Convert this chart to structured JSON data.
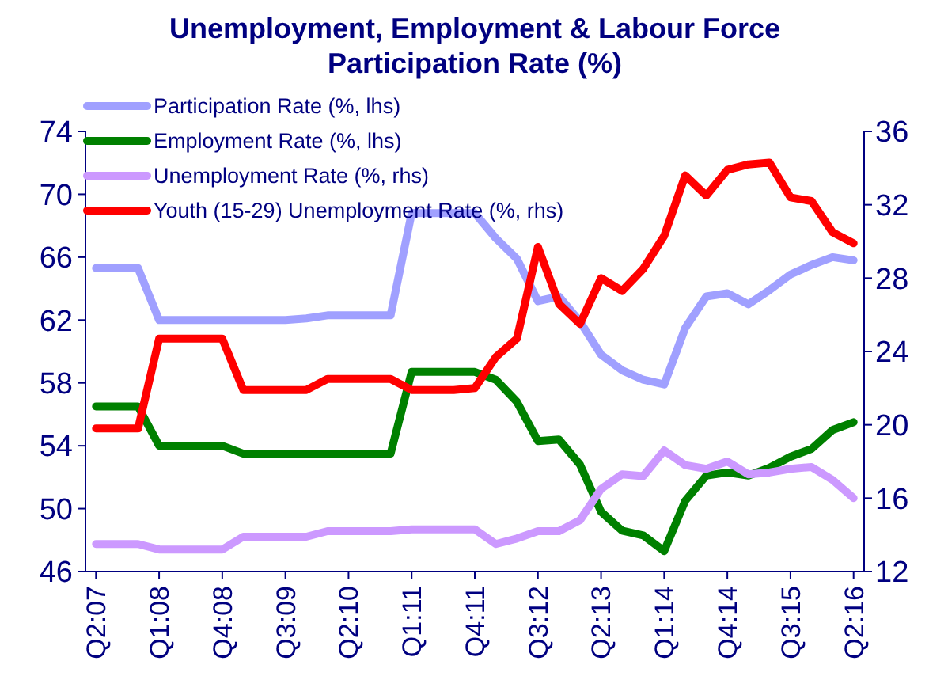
{
  "chart_data": {
    "type": "line",
    "title": "Unemployment, Employment & Labour Force\nParticipation Rate (%)",
    "categories": [
      "Q2:07",
      null,
      null,
      "Q1:08",
      null,
      null,
      "Q4:08",
      null,
      null,
      "Q3:09",
      null,
      null,
      "Q2:10",
      null,
      null,
      "Q1:11",
      null,
      null,
      "Q4:11",
      null,
      null,
      "Q3:12",
      null,
      null,
      "Q2:13",
      null,
      null,
      "Q1:14",
      null,
      null,
      "Q4:14",
      null,
      null,
      "Q3:15",
      null,
      null,
      "Q2:16"
    ],
    "series": [
      {
        "name": "Participation Rate (%, lhs)",
        "color": "#a0a0ff",
        "values": [
          65.3,
          65.3,
          65.3,
          62.0,
          62.0,
          62.0,
          62.0,
          62.0,
          62.0,
          62.0,
          62.1,
          62.3,
          62.3,
          62.3,
          62.3,
          68.8,
          68.8,
          68.8,
          68.8,
          67.2,
          65.9,
          63.2,
          63.5,
          61.9,
          59.8,
          58.8,
          58.2,
          57.9,
          61.5,
          63.5,
          63.7,
          63.0,
          63.9,
          64.9,
          65.5,
          66.0,
          65.8
        ]
      },
      {
        "name": "Employment Rate (%, lhs)",
        "color": "#008000",
        "values": [
          56.5,
          56.5,
          56.5,
          54.0,
          54.0,
          54.0,
          54.0,
          53.5,
          53.5,
          53.5,
          53.5,
          53.5,
          53.5,
          53.5,
          53.5,
          58.7,
          58.7,
          58.7,
          58.7,
          58.2,
          56.8,
          54.3,
          54.4,
          52.8,
          49.8,
          48.6,
          48.3,
          47.3,
          50.5,
          52.1,
          52.3,
          52.1,
          52.6,
          53.3,
          53.8,
          55.0,
          55.5
        ]
      },
      {
        "name": "Unemployment Rate (%, rhs)",
        "color": "#cc99ff",
        "axis": "y2",
        "values": [
          13.5,
          13.5,
          13.5,
          13.2,
          13.2,
          13.2,
          13.2,
          13.9,
          13.9,
          13.9,
          13.9,
          14.2,
          14.2,
          14.2,
          14.2,
          14.3,
          14.3,
          14.3,
          14.3,
          13.5,
          13.8,
          14.2,
          14.2,
          14.8,
          16.5,
          17.3,
          17.2,
          18.6,
          17.8,
          17.6,
          18.0,
          17.3,
          17.4,
          17.6,
          17.7,
          17.0,
          16.0
        ]
      },
      {
        "name": "Youth (15-29) Unemployment Rate (%, rhs)",
        "color": "#ff0000",
        "axis": "y2",
        "values": [
          19.8,
          19.8,
          19.8,
          24.7,
          24.7,
          24.7,
          24.7,
          21.9,
          21.9,
          21.9,
          21.9,
          22.5,
          22.5,
          22.5,
          22.5,
          21.9,
          21.9,
          21.9,
          22.0,
          23.7,
          24.7,
          29.7,
          26.6,
          25.5,
          28.0,
          27.3,
          28.5,
          30.3,
          33.6,
          32.5,
          33.9,
          34.2,
          34.3,
          32.4,
          32.2,
          30.5,
          29.9
        ]
      }
    ],
    "ylim": [
      46,
      74
    ],
    "yticks": [
      46,
      50,
      54,
      58,
      62,
      66,
      70,
      74
    ],
    "y2lim": [
      12,
      36
    ],
    "y2ticks": [
      12,
      16,
      20,
      24,
      28,
      32,
      36
    ],
    "legend": "top left",
    "line_style": "solid",
    "marker": "none"
  }
}
